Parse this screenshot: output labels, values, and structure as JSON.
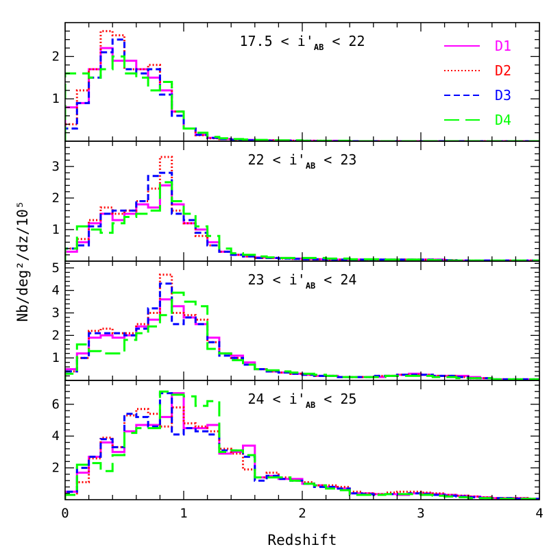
{
  "chart_data": {
    "type": "line",
    "step": true,
    "xlabel": "Redshift",
    "ylabel": "Nb/deg²/dz/10⁵",
    "xlim": [
      0,
      4
    ],
    "xticks": [
      "0",
      "1",
      "2",
      "3",
      "4"
    ],
    "legend_position": "top-right",
    "series_styles": [
      {
        "name": "D1",
        "color": "#ff00ff",
        "dash": "solid"
      },
      {
        "name": "D2",
        "color": "#ff0000",
        "dash": "dotted"
      },
      {
        "name": "D3",
        "color": "#0000ff",
        "dash": "short-dashed"
      },
      {
        "name": "D4",
        "color": "#00ff00",
        "dash": "long-dashed"
      }
    ],
    "bin_edges": [
      0,
      0.1,
      0.2,
      0.3,
      0.4,
      0.5,
      0.6,
      0.7,
      0.8,
      0.9,
      1.0,
      1.1,
      1.2,
      1.3,
      1.4,
      1.5,
      1.6,
      1.7,
      1.8,
      1.9,
      2.0,
      2.1,
      2.2,
      2.3,
      2.4,
      2.5,
      2.6,
      2.7,
      2.8,
      2.9,
      3.0,
      3.1,
      3.2,
      3.3,
      3.4,
      3.5,
      3.6,
      3.7,
      3.8,
      3.9,
      4.0
    ],
    "panels": [
      {
        "annotation": {
          "pre": "17.5 <  i'",
          "sub": "AB",
          "post": " < 22"
        },
        "ylim": [
          0,
          2.8
        ],
        "yticks": [
          1,
          2
        ],
        "series": [
          {
            "name": "D1",
            "values": [
              0.8,
              0.9,
              1.7,
              2.2,
              1.9,
              1.9,
              1.7,
              1.5,
              1.2,
              0.7,
              0.3,
              0.15,
              0.08,
              0.05,
              0.04,
              0.03,
              0.02,
              0.02,
              0.02,
              0.01,
              0.01,
              0.01,
              0.01,
              0,
              0,
              0,
              0,
              0,
              0,
              0,
              0,
              0,
              0,
              0,
              0,
              0,
              0,
              0,
              0,
              0
            ]
          },
          {
            "name": "D2",
            "values": [
              0.4,
              1.2,
              1.7,
              2.6,
              2.5,
              1.7,
              1.7,
              1.8,
              1.4,
              0.7,
              0.3,
              0.14,
              0.07,
              0.05,
              0.03,
              0.02,
              0.02,
              0.02,
              0.01,
              0.01,
              0.01,
              0.01,
              0,
              0,
              0,
              0,
              0,
              0,
              0,
              0,
              0,
              0,
              0,
              0,
              0,
              0,
              0,
              0,
              0,
              0
            ]
          },
          {
            "name": "D3",
            "values": [
              0.3,
              0.9,
              1.5,
              2.1,
              2.4,
              1.7,
              1.6,
              1.7,
              1.1,
              0.6,
              0.3,
              0.15,
              0.08,
              0.05,
              0.03,
              0.02,
              0.02,
              0.01,
              0.01,
              0.01,
              0.01,
              0,
              0,
              0,
              0,
              0,
              0,
              0,
              0,
              0,
              0,
              0,
              0,
              0,
              0,
              0,
              0,
              0,
              0,
              0
            ]
          },
          {
            "name": "D4",
            "values": [
              1.6,
              1.6,
              1.5,
              1.7,
              2.0,
              1.6,
              1.5,
              1.2,
              1.4,
              0.7,
              0.3,
              0.2,
              0.1,
              0.07,
              0.05,
              0.04,
              0.03,
              0.02,
              0.02,
              0.02,
              0.01,
              0.01,
              0.01,
              0.01,
              0,
              0,
              0,
              0,
              0,
              0,
              0,
              0,
              0,
              0,
              0,
              0,
              0,
              0,
              0,
              0
            ]
          }
        ]
      },
      {
        "annotation": {
          "pre": "22 <  i'",
          "sub": "AB",
          "post": " < 23"
        },
        "ylim": [
          0,
          3.8
        ],
        "yticks": [
          1,
          2,
          3
        ],
        "series": [
          {
            "name": "D1",
            "values": [
              0.3,
              0.6,
              1.2,
              1.5,
              1.3,
              1.5,
              1.8,
              1.7,
              2.4,
              1.8,
              1.2,
              1.0,
              0.6,
              0.3,
              0.2,
              0.15,
              0.12,
              0.1,
              0.1,
              0.08,
              0.07,
              0.06,
              0.05,
              0.05,
              0.05,
              0.05,
              0.05,
              0.05,
              0.05,
              0.05,
              0.05,
              0.05,
              0.03,
              0.02,
              0.02,
              0.02,
              0.02,
              0.02,
              0.02,
              0.02
            ]
          },
          {
            "name": "D2",
            "values": [
              0.4,
              0.7,
              1.3,
              1.7,
              1.5,
              1.6,
              1.9,
              2.3,
              3.3,
              1.6,
              1.2,
              0.8,
              0.5,
              0.3,
              0.2,
              0.15,
              0.1,
              0.1,
              0.08,
              0.07,
              0.06,
              0.06,
              0.05,
              0.05,
              0.05,
              0.05,
              0.05,
              0.05,
              0.05,
              0.05,
              0.05,
              0.04,
              0.03,
              0.02,
              0.02,
              0.02,
              0.02,
              0.02,
              0.02,
              0.02
            ]
          },
          {
            "name": "D3",
            "values": [
              0.4,
              0.5,
              1.1,
              1.5,
              1.6,
              1.6,
              1.9,
              2.7,
              2.8,
              1.5,
              1.3,
              0.9,
              0.5,
              0.3,
              0.2,
              0.15,
              0.1,
              0.1,
              0.08,
              0.07,
              0.06,
              0.06,
              0.05,
              0.05,
              0.05,
              0.05,
              0.05,
              0.05,
              0.05,
              0.05,
              0.05,
              0.04,
              0.03,
              0.02,
              0.02,
              0.02,
              0.02,
              0.02,
              0.02,
              0.02
            ]
          },
          {
            "name": "D4",
            "values": [
              0.4,
              1.1,
              1.0,
              0.9,
              1.2,
              1.4,
              1.5,
              1.6,
              2.5,
              1.9,
              1.5,
              1.1,
              0.8,
              0.4,
              0.25,
              0.2,
              0.15,
              0.12,
              0.1,
              0.1,
              0.1,
              0.1,
              0.08,
              0.08,
              0.06,
              0.06,
              0.06,
              0.05,
              0.05,
              0.05,
              0.04,
              0.03,
              0.02,
              0.02,
              0.02,
              0.02,
              0.02,
              0.02,
              0.02,
              0.02
            ]
          }
        ]
      },
      {
        "annotation": {
          "pre": "23 <  i'",
          "sub": "AB",
          "post": " < 24"
        },
        "ylim": [
          0,
          5.3
        ],
        "yticks": [
          1,
          2,
          3,
          4,
          5
        ],
        "series": [
          {
            "name": "D1",
            "values": [
              0.5,
              1.2,
              1.9,
              2.0,
              1.9,
              2.0,
              2.4,
              2.7,
              3.6,
              3.3,
              2.8,
              2.5,
              1.9,
              1.2,
              1.1,
              0.8,
              0.5,
              0.4,
              0.35,
              0.3,
              0.25,
              0.2,
              0.2,
              0.15,
              0.15,
              0.15,
              0.15,
              0.2,
              0.25,
              0.3,
              0.25,
              0.2,
              0.2,
              0.2,
              0.15,
              0.1,
              0.05,
              0.05,
              0.05,
              0.05
            ]
          },
          {
            "name": "D2",
            "values": [
              0.4,
              1.0,
              2.2,
              2.3,
              2.1,
              2.1,
              2.5,
              3.0,
              4.7,
              3.0,
              2.9,
              2.7,
              1.7,
              1.2,
              1.0,
              0.7,
              0.5,
              0.4,
              0.35,
              0.3,
              0.25,
              0.2,
              0.2,
              0.15,
              0.15,
              0.15,
              0.2,
              0.2,
              0.25,
              0.25,
              0.25,
              0.2,
              0.2,
              0.15,
              0.1,
              0.1,
              0.05,
              0.05,
              0.05,
              0.05
            ]
          },
          {
            "name": "D3",
            "values": [
              0.4,
              1.0,
              2.1,
              2.1,
              2.1,
              2.0,
              2.3,
              3.2,
              4.3,
              2.5,
              2.8,
              2.5,
              1.7,
              1.1,
              1.0,
              0.7,
              0.5,
              0.4,
              0.35,
              0.3,
              0.25,
              0.2,
              0.2,
              0.15,
              0.15,
              0.15,
              0.2,
              0.2,
              0.25,
              0.25,
              0.25,
              0.2,
              0.2,
              0.15,
              0.1,
              0.1,
              0.05,
              0.05,
              0.05,
              0.05
            ]
          },
          {
            "name": "D4",
            "values": [
              0.3,
              1.6,
              1.3,
              1.2,
              1.2,
              1.8,
              2.1,
              2.4,
              2.9,
              3.9,
              3.5,
              3.3,
              1.4,
              1.2,
              0.9,
              0.7,
              0.5,
              0.45,
              0.4,
              0.35,
              0.3,
              0.25,
              0.2,
              0.15,
              0.15,
              0.15,
              0.15,
              0.2,
              0.2,
              0.2,
              0.2,
              0.15,
              0.15,
              0.1,
              0.1,
              0.1,
              0.05,
              0.05,
              0.05,
              0.05
            ]
          }
        ]
      },
      {
        "annotation": {
          "pre": "24 <  i'",
          "sub": "AB",
          "post": " < 25"
        },
        "ylim": [
          0,
          7.5
        ],
        "yticks": [
          2,
          4,
          6
        ],
        "series": [
          {
            "name": "D1",
            "values": [
              0.5,
              1.7,
              2.7,
              3.6,
              3.0,
              4.3,
              4.7,
              4.7,
              5.2,
              6.7,
              4.5,
              4.5,
              4.7,
              2.9,
              3.0,
              3.4,
              1.4,
              1.5,
              1.3,
              1.3,
              1.0,
              0.9,
              0.8,
              0.7,
              0.4,
              0.4,
              0.35,
              0.35,
              0.3,
              0.4,
              0.4,
              0.35,
              0.3,
              0.25,
              0.2,
              0.15,
              0.1,
              0.1,
              0.1,
              0.05
            ]
          },
          {
            "name": "D2",
            "values": [
              0.3,
              1.1,
              2.6,
              3.9,
              3.3,
              5.3,
              5.7,
              5.4,
              4.6,
              5.8,
              4.8,
              4.6,
              4.3,
              3.2,
              2.9,
              1.9,
              1.4,
              1.7,
              1.4,
              1.2,
              1.1,
              0.9,
              0.9,
              0.8,
              0.5,
              0.4,
              0.35,
              0.45,
              0.5,
              0.5,
              0.45,
              0.4,
              0.3,
              0.25,
              0.2,
              0.15,
              0.1,
              0.1,
              0.1,
              0.05
            ]
          },
          {
            "name": "D3",
            "values": [
              0.5,
              2.0,
              2.7,
              3.8,
              3.3,
              5.4,
              5.2,
              4.6,
              6.7,
              4.1,
              4.5,
              4.3,
              4.1,
              3.1,
              3.1,
              2.7,
              1.2,
              1.5,
              1.3,
              1.2,
              1.0,
              0.8,
              0.8,
              0.7,
              0.4,
              0.35,
              0.3,
              0.35,
              0.35,
              0.4,
              0.35,
              0.3,
              0.25,
              0.2,
              0.15,
              0.1,
              0.1,
              0.1,
              0.05,
              0.05
            ]
          },
          {
            "name": "D4",
            "values": [
              0.3,
              2.2,
              2.3,
              1.8,
              2.8,
              4.2,
              4.5,
              4.5,
              6.8,
              6.6,
              6.5,
              5.9,
              6.2,
              3.0,
              3.1,
              2.8,
              1.4,
              1.4,
              1.4,
              1.2,
              1.0,
              0.9,
              0.7,
              0.6,
              0.3,
              0.3,
              0.3,
              0.35,
              0.35,
              0.35,
              0.3,
              0.25,
              0.2,
              0.15,
              0.1,
              0.1,
              0.05,
              0.05,
              0.05,
              0.05
            ]
          }
        ]
      }
    ]
  }
}
